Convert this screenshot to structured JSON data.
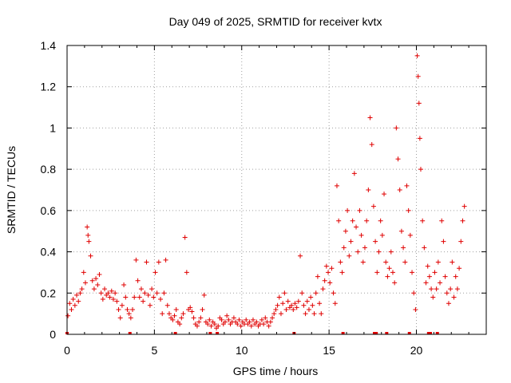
{
  "chart_data": {
    "type": "scatter",
    "title": "Day 049 of 2025, SRMTID for receiver kvtx",
    "xlabel": "GPS time / hours",
    "ylabel": "SRMTID / TECUs",
    "xlim": [
      0,
      24
    ],
    "ylim": [
      0,
      1.4
    ],
    "xticks": [
      0,
      5,
      10,
      15,
      20
    ],
    "xtick_labels": [
      "0",
      "5",
      "10",
      "15",
      "20"
    ],
    "yticks": [
      0,
      0.2,
      0.4,
      0.6,
      0.8,
      1.0,
      1.2,
      1.4
    ],
    "ytick_labels": [
      "0",
      "0.2",
      "0.4",
      "0.6",
      "0.8",
      "1",
      "1.2",
      "1.4"
    ],
    "grid": true,
    "marker": "+",
    "color": "#e00000",
    "series": [
      {
        "name": "SRMTID",
        "points": [
          [
            0.05,
            0.09
          ],
          [
            0.15,
            0.15
          ],
          [
            0.25,
            0.12
          ],
          [
            0.35,
            0.17
          ],
          [
            0.45,
            0.14
          ],
          [
            0.55,
            0.19
          ],
          [
            0.65,
            0.16
          ],
          [
            0.75,
            0.2
          ],
          [
            0.85,
            0.22
          ],
          [
            0.95,
            0.3
          ],
          [
            1.05,
            0.25
          ],
          [
            1.15,
            0.52
          ],
          [
            1.2,
            0.48
          ],
          [
            1.25,
            0.45
          ],
          [
            1.35,
            0.38
          ],
          [
            1.45,
            0.26
          ],
          [
            1.55,
            0.22
          ],
          [
            1.65,
            0.27
          ],
          [
            1.75,
            0.24
          ],
          [
            1.85,
            0.29
          ],
          [
            1.95,
            0.2
          ],
          [
            2.05,
            0.17
          ],
          [
            2.15,
            0.22
          ],
          [
            2.25,
            0.19
          ],
          [
            2.35,
            0.2
          ],
          [
            2.45,
            0.18
          ],
          [
            2.55,
            0.21
          ],
          [
            2.65,
            0.17
          ],
          [
            2.75,
            0.2
          ],
          [
            2.85,
            0.16
          ],
          [
            2.95,
            0.12
          ],
          [
            3.05,
            0.08
          ],
          [
            3.15,
            0.14
          ],
          [
            3.25,
            0.24
          ],
          [
            3.35,
            0.18
          ],
          [
            3.45,
            0.12
          ],
          [
            3.55,
            0.1
          ],
          [
            3.65,
            0.08
          ],
          [
            3.75,
            0.12
          ],
          [
            3.85,
            0.18
          ],
          [
            3.95,
            0.36
          ],
          [
            4.05,
            0.26
          ],
          [
            4.15,
            0.18
          ],
          [
            4.25,
            0.22
          ],
          [
            4.35,
            0.16
          ],
          [
            4.45,
            0.2
          ],
          [
            4.55,
            0.35
          ],
          [
            4.65,
            0.19
          ],
          [
            4.75,
            0.14
          ],
          [
            4.85,
            0.22
          ],
          [
            4.95,
            0.18
          ],
          [
            5.05,
            0.3
          ],
          [
            5.15,
            0.2
          ],
          [
            5.25,
            0.35
          ],
          [
            5.35,
            0.17
          ],
          [
            5.45,
            0.1
          ],
          [
            5.55,
            0.2
          ],
          [
            5.65,
            0.36
          ],
          [
            5.75,
            0.14
          ],
          [
            5.85,
            0.1
          ],
          [
            5.95,
            0.08
          ],
          [
            6.05,
            0.07
          ],
          [
            6.15,
            0.09
          ],
          [
            6.25,
            0.12
          ],
          [
            6.35,
            0.06
          ],
          [
            6.45,
            0.05
          ],
          [
            6.55,
            0.08
          ],
          [
            6.65,
            0.1
          ],
          [
            6.75,
            0.47
          ],
          [
            6.85,
            0.3
          ],
          [
            6.95,
            0.12
          ],
          [
            7.05,
            0.13
          ],
          [
            7.15,
            0.11
          ],
          [
            7.25,
            0.08
          ],
          [
            7.35,
            0.05
          ],
          [
            7.45,
            0.04
          ],
          [
            7.55,
            0.06
          ],
          [
            7.65,
            0.08
          ],
          [
            7.75,
            0.12
          ],
          [
            7.85,
            0.19
          ],
          [
            7.95,
            0.06
          ],
          [
            8.05,
            0.05
          ],
          [
            8.15,
            0.07
          ],
          [
            8.25,
            0.04
          ],
          [
            8.35,
            0.06
          ],
          [
            8.45,
            0.05
          ],
          [
            8.55,
            0.03
          ],
          [
            8.65,
            0.04
          ],
          [
            8.75,
            0.08
          ],
          [
            8.85,
            0.07
          ],
          [
            8.95,
            0.05
          ],
          [
            9.05,
            0.06
          ],
          [
            9.15,
            0.09
          ],
          [
            9.25,
            0.07
          ],
          [
            9.35,
            0.05
          ],
          [
            9.45,
            0.06
          ],
          [
            9.55,
            0.08
          ],
          [
            9.65,
            0.06
          ],
          [
            9.75,
            0.05
          ],
          [
            9.85,
            0.07
          ],
          [
            9.95,
            0.04
          ],
          [
            10.05,
            0.06
          ],
          [
            10.15,
            0.05
          ],
          [
            10.25,
            0.07
          ],
          [
            10.35,
            0.05
          ],
          [
            10.45,
            0.06
          ],
          [
            10.55,
            0.04
          ],
          [
            10.65,
            0.07
          ],
          [
            10.75,
            0.05
          ],
          [
            10.85,
            0.06
          ],
          [
            10.95,
            0.04
          ],
          [
            11.05,
            0.05
          ],
          [
            11.15,
            0.07
          ],
          [
            11.25,
            0.05
          ],
          [
            11.35,
            0.08
          ],
          [
            11.45,
            0.06
          ],
          [
            11.55,
            0.04
          ],
          [
            11.65,
            0.06
          ],
          [
            11.75,
            0.08
          ],
          [
            11.85,
            0.1
          ],
          [
            11.95,
            0.12
          ],
          [
            12.05,
            0.14
          ],
          [
            12.15,
            0.18
          ],
          [
            12.25,
            0.1
          ],
          [
            12.35,
            0.15
          ],
          [
            12.45,
            0.2
          ],
          [
            12.55,
            0.12
          ],
          [
            12.65,
            0.16
          ],
          [
            12.75,
            0.13
          ],
          [
            12.85,
            0.14
          ],
          [
            12.95,
            0.12
          ],
          [
            13.05,
            0.15
          ],
          [
            13.15,
            0.13
          ],
          [
            13.25,
            0.16
          ],
          [
            13.35,
            0.38
          ],
          [
            13.45,
            0.2
          ],
          [
            13.55,
            0.14
          ],
          [
            13.65,
            0.1
          ],
          [
            13.75,
            0.16
          ],
          [
            13.85,
            0.12
          ],
          [
            13.95,
            0.18
          ],
          [
            14.05,
            0.14
          ],
          [
            14.15,
            0.1
          ],
          [
            14.25,
            0.2
          ],
          [
            14.35,
            0.28
          ],
          [
            14.45,
            0.15
          ],
          [
            14.55,
            0.1
          ],
          [
            14.65,
            0.22
          ],
          [
            14.75,
            0.26
          ],
          [
            14.85,
            0.33
          ],
          [
            14.95,
            0.3
          ],
          [
            15.05,
            0.25
          ],
          [
            15.15,
            0.32
          ],
          [
            15.25,
            0.2
          ],
          [
            15.35,
            0.15
          ],
          [
            15.45,
            0.72
          ],
          [
            15.55,
            0.55
          ],
          [
            15.65,
            0.35
          ],
          [
            15.75,
            0.3
          ],
          [
            15.85,
            0.42
          ],
          [
            15.95,
            0.5
          ],
          [
            16.05,
            0.6
          ],
          [
            16.15,
            0.38
          ],
          [
            16.25,
            0.45
          ],
          [
            16.35,
            0.55
          ],
          [
            16.45,
            0.78
          ],
          [
            16.55,
            0.52
          ],
          [
            16.65,
            0.4
          ],
          [
            16.75,
            0.6
          ],
          [
            16.85,
            0.48
          ],
          [
            16.95,
            0.35
          ],
          [
            17.05,
            0.42
          ],
          [
            17.15,
            0.55
          ],
          [
            17.25,
            0.7
          ],
          [
            17.35,
            1.05
          ],
          [
            17.45,
            0.92
          ],
          [
            17.55,
            0.62
          ],
          [
            17.65,
            0.45
          ],
          [
            17.75,
            0.3
          ],
          [
            17.85,
            0.4
          ],
          [
            17.95,
            0.55
          ],
          [
            18.05,
            0.48
          ],
          [
            18.15,
            0.68
          ],
          [
            18.25,
            0.35
          ],
          [
            18.35,
            0.28
          ],
          [
            18.45,
            0.32
          ],
          [
            18.55,
            0.4
          ],
          [
            18.65,
            0.3
          ],
          [
            18.75,
            0.25
          ],
          [
            18.85,
            1.0
          ],
          [
            18.95,
            0.85
          ],
          [
            19.05,
            0.7
          ],
          [
            19.15,
            0.5
          ],
          [
            19.25,
            0.42
          ],
          [
            19.35,
            0.35
          ],
          [
            19.45,
            0.72
          ],
          [
            19.55,
            0.6
          ],
          [
            19.65,
            0.48
          ],
          [
            19.75,
            0.3
          ],
          [
            19.85,
            0.2
          ],
          [
            19.95,
            0.12
          ],
          [
            20.05,
            1.35
          ],
          [
            20.1,
            1.25
          ],
          [
            20.15,
            1.12
          ],
          [
            20.2,
            0.95
          ],
          [
            20.25,
            0.8
          ],
          [
            20.35,
            0.55
          ],
          [
            20.45,
            0.42
          ],
          [
            20.55,
            0.25
          ],
          [
            20.65,
            0.33
          ],
          [
            20.75,
            0.28
          ],
          [
            20.85,
            0.22
          ],
          [
            20.95,
            0.18
          ],
          [
            21.05,
            0.3
          ],
          [
            21.15,
            0.22
          ],
          [
            21.25,
            0.35
          ],
          [
            21.35,
            0.25
          ],
          [
            21.45,
            0.55
          ],
          [
            21.55,
            0.45
          ],
          [
            21.65,
            0.28
          ],
          [
            21.75,
            0.2
          ],
          [
            21.85,
            0.15
          ],
          [
            21.95,
            0.22
          ],
          [
            22.05,
            0.35
          ],
          [
            22.15,
            0.18
          ],
          [
            22.25,
            0.28
          ],
          [
            22.35,
            0.22
          ],
          [
            22.45,
            0.32
          ],
          [
            22.55,
            0.45
          ],
          [
            22.65,
            0.55
          ],
          [
            22.75,
            0.62
          ]
        ]
      }
    ],
    "gap_markers_x": [
      0.0,
      3.6,
      6.2,
      8.2,
      8.6,
      13.0,
      15.8,
      17.6,
      17.7,
      18.3,
      19.6,
      20.7,
      20.8,
      21.2
    ]
  }
}
